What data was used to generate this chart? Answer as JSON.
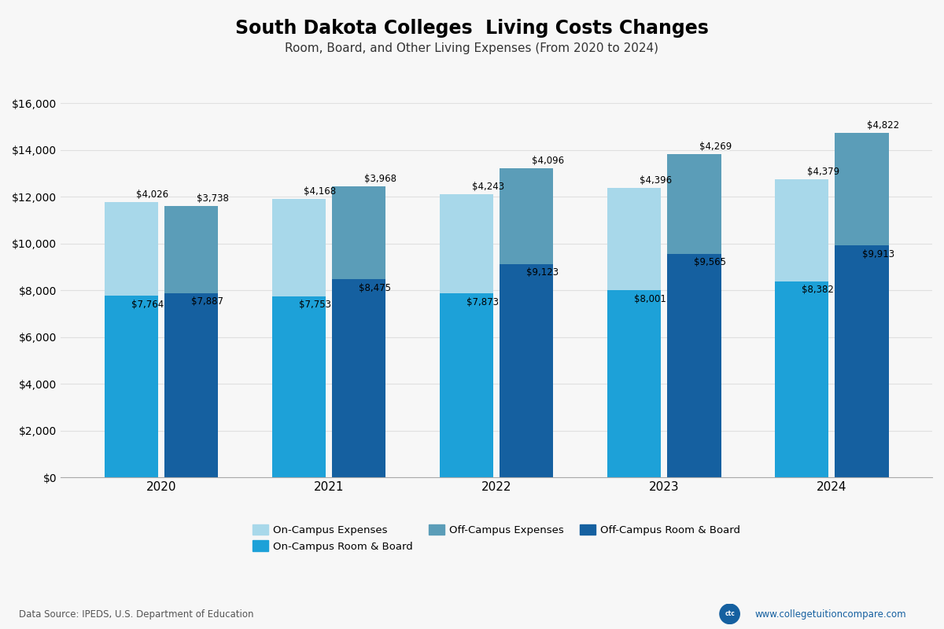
{
  "title": "South Dakota Colleges  Living Costs Changes",
  "subtitle": "Room, Board, and Other Living Expenses (From 2020 to 2024)",
  "years": [
    "2020",
    "2021",
    "2022",
    "2023",
    "2024"
  ],
  "on_campus_room_board": [
    7764,
    7753,
    7873,
    8001,
    8382
  ],
  "on_campus_expenses": [
    4026,
    4168,
    4243,
    4396,
    4379
  ],
  "off_campus_room_board": [
    7887,
    8475,
    9123,
    9565,
    9913
  ],
  "off_campus_expenses": [
    3738,
    3968,
    4096,
    4269,
    4822
  ],
  "color_on_campus_bottom": "#1DA1D8",
  "color_on_campus_top": "#A8D8EA",
  "color_off_campus_bottom": "#1560A0",
  "color_off_campus_top": "#5B9DB8",
  "ylim": [
    0,
    16000
  ],
  "yticks": [
    0,
    2000,
    4000,
    6000,
    8000,
    10000,
    12000,
    14000,
    16000
  ],
  "bar_width": 0.32,
  "bar_gap": 0.04,
  "background_color": "#f7f7f7",
  "grid_color": "#e0e0e0",
  "data_source": "Data Source: IPEDS, U.S. Department of Education",
  "website": "www.collegetuitioncompare.com",
  "legend_labels": [
    "On-Campus Expenses",
    "On-Campus Room & Board",
    "Off-Campus Expenses",
    "Off-Campus Room & Board"
  ]
}
